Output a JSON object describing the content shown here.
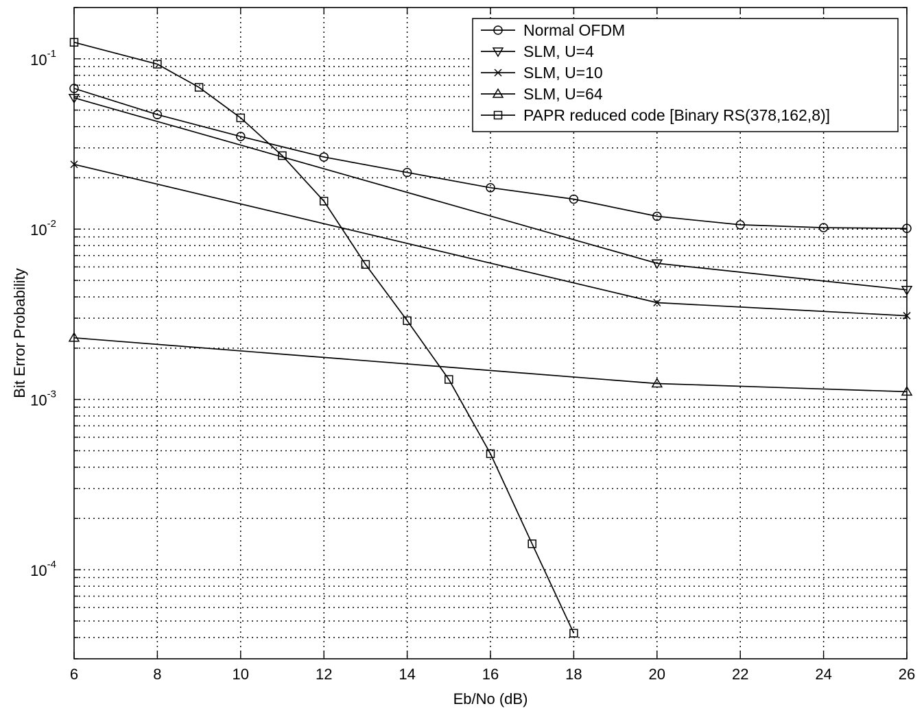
{
  "chart_data": {
    "type": "line",
    "title": "",
    "xlabel": "Eb/No (dB)",
    "ylabel": "Bit Error Probability",
    "xscale": "linear",
    "yscale": "log",
    "xlim": [
      6,
      26
    ],
    "ylim": [
      3e-05,
      0.2
    ],
    "xticks": [
      6,
      8,
      10,
      12,
      14,
      16,
      18,
      20,
      22,
      24,
      26
    ],
    "xtick_labels": [
      "6",
      "8",
      "10",
      "12",
      "14",
      "16",
      "18",
      "20",
      "22",
      "24",
      "26"
    ],
    "yticks": [
      {
        "value": 0.1,
        "base": "10",
        "exp": "-1"
      },
      {
        "value": 0.01,
        "base": "10",
        "exp": "-2"
      },
      {
        "value": 0.001,
        "base": "10",
        "exp": "-3"
      },
      {
        "value": 0.0001,
        "base": "10",
        "exp": "-4"
      }
    ],
    "grid": true,
    "legend_position": "top-right",
    "series": [
      {
        "name": "Normal OFDM",
        "marker": "circle",
        "x": [
          6,
          8,
          10,
          12,
          14,
          16,
          18,
          20,
          22,
          24,
          26
        ],
        "y": [
          0.067,
          0.047,
          0.035,
          0.0265,
          0.0215,
          0.0175,
          0.015,
          0.0119,
          0.0106,
          0.0102,
          0.0101
        ]
      },
      {
        "name": "SLM, U=4",
        "marker": "triangle-down",
        "x": [
          6,
          20,
          26
        ],
        "y": [
          0.059,
          0.0063,
          0.0044
        ]
      },
      {
        "name": "SLM, U=10",
        "marker": "x",
        "x": [
          6,
          20,
          26
        ],
        "y": [
          0.024,
          0.0037,
          0.0031
        ]
      },
      {
        "name": "SLM, U=64",
        "marker": "triangle-up",
        "x": [
          6,
          20,
          26
        ],
        "y": [
          0.0023,
          0.00124,
          0.00111
        ]
      },
      {
        "name": "PAPR reduced code [Binary RS(378,162,8)]",
        "marker": "square",
        "x": [
          6,
          8,
          9,
          10,
          11,
          12,
          13,
          14,
          15,
          16,
          17,
          18
        ],
        "y": [
          0.125,
          0.093,
          0.068,
          0.045,
          0.027,
          0.0146,
          0.0062,
          0.0029,
          0.00131,
          0.00048,
          0.000142,
          4.24e-05
        ]
      }
    ]
  }
}
